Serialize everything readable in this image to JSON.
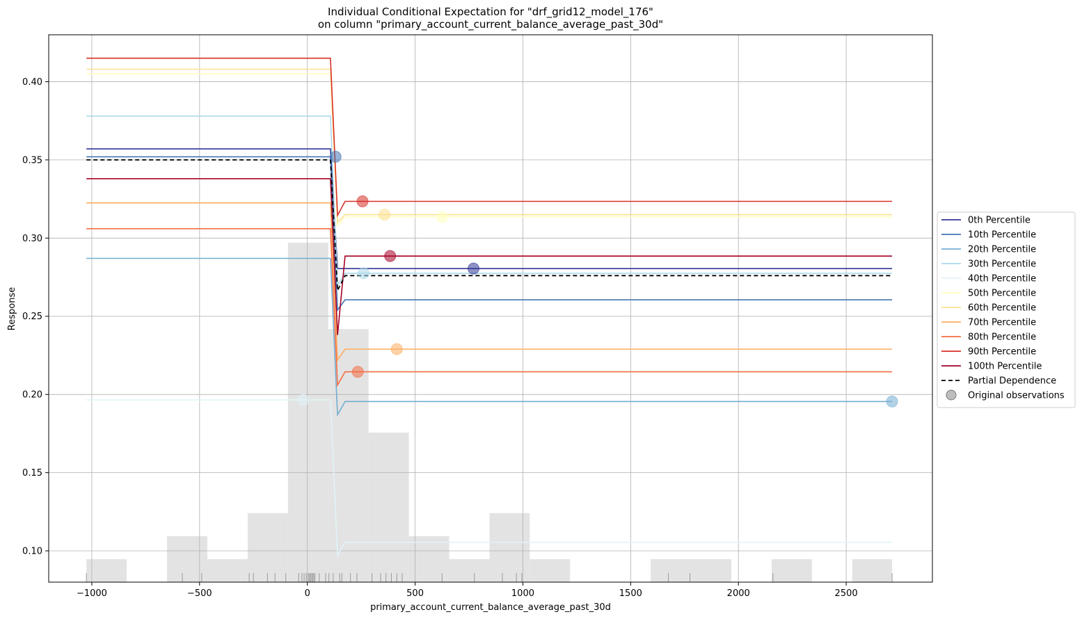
{
  "chart_data": {
    "type": "line",
    "title": "Individual Conditional Expectation for \"drf_grid12_model_176\"",
    "subtitle": "on column \"primary_account_current_balance_average_past_30d\"",
    "xlabel": "primary_account_current_balance_average_past_30d",
    "ylabel": "Response",
    "xlim": [
      -1200,
      2900
    ],
    "ylim": [
      0.08,
      0.43
    ],
    "xticks": [
      -1000,
      -500,
      0,
      500,
      1000,
      1500,
      2000,
      2500
    ],
    "xtick_labels": [
      "−1000",
      "−500",
      "0",
      "500",
      "1000",
      "1500",
      "2000",
      "2500"
    ],
    "yticks": [
      0.1,
      0.15,
      0.2,
      0.25,
      0.3,
      0.35,
      0.4
    ],
    "ytick_labels": [
      "0.10",
      "0.15",
      "0.20",
      "0.25",
      "0.30",
      "0.35",
      "0.40"
    ],
    "grid": true,
    "legend_position": "right",
    "x": [
      -1025,
      107,
      140,
      175,
      2713
    ],
    "series": [
      {
        "name": "0th Percentile",
        "color": "#313695",
        "values": [
          0.357,
          0.357,
          0.2805,
          0.2805,
          0.2805
        ],
        "observation": [
          771,
          0.2805
        ]
      },
      {
        "name": "10th Percentile",
        "color": "#4575b4",
        "values": [
          0.352,
          0.352,
          0.254,
          0.2605,
          0.2605
        ],
        "observation": [
          131,
          0.352
        ]
      },
      {
        "name": "20th Percentile",
        "color": "#74add1",
        "values": [
          0.287,
          0.287,
          0.187,
          0.1955,
          0.1955
        ],
        "observation": [
          2713,
          0.1955
        ]
      },
      {
        "name": "30th Percentile",
        "color": "#abd9e9",
        "values": [
          0.378,
          0.378,
          0.27,
          0.2775,
          0.2775
        ],
        "observation": [
          261,
          0.2775
        ]
      },
      {
        "name": "40th Percentile",
        "color": "#e0f3f8",
        "values": [
          0.1965,
          0.1965,
          0.097,
          0.1055,
          0.1055
        ],
        "observation": [
          -20,
          0.1965
        ]
      },
      {
        "name": "50th Percentile",
        "color": "#ffffbf",
        "values": [
          0.405,
          0.405,
          0.308,
          0.3135,
          0.3135
        ],
        "observation": [
          625,
          0.3135
        ]
      },
      {
        "name": "60th Percentile",
        "color": "#fee090",
        "values": [
          0.408,
          0.408,
          0.31,
          0.315,
          0.315
        ],
        "observation": [
          358,
          0.315
        ]
      },
      {
        "name": "70th Percentile",
        "color": "#fdae61",
        "values": [
          0.3225,
          0.3225,
          0.222,
          0.229,
          0.229
        ],
        "observation": [
          415,
          0.229
        ]
      },
      {
        "name": "80th Percentile",
        "color": "#f46d43",
        "values": [
          0.306,
          0.306,
          0.206,
          0.2145,
          0.2145
        ],
        "observation": [
          234,
          0.2145
        ]
      },
      {
        "name": "90th Percentile",
        "color": "#d73027",
        "values": [
          0.415,
          0.415,
          0.3145,
          0.3235,
          0.3235
        ],
        "observation": [
          256,
          0.3235
        ]
      },
      {
        "name": "100th Percentile",
        "color": "#a50026",
        "values": [
          0.338,
          0.338,
          0.238,
          0.2885,
          0.2885
        ],
        "observation": [
          384,
          0.2885
        ]
      },
      {
        "name": "Partial Dependence",
        "color": "#000000",
        "dashed": true,
        "values": [
          0.35,
          0.35,
          0.2665,
          0.276,
          0.276
        ]
      }
    ],
    "observations_legend": "Original observations",
    "histogram": {
      "color": "#e3e3e3",
      "bins": [
        {
          "x0": -1025,
          "x1": -838,
          "relative_height": 0.0678
        },
        {
          "x0": -838,
          "x1": -651,
          "relative_height": 0
        },
        {
          "x0": -651,
          "x1": -464,
          "relative_height": 0.1356
        },
        {
          "x0": -464,
          "x1": -277,
          "relative_height": 0.0678
        },
        {
          "x0": -277,
          "x1": -90,
          "relative_height": 0.2034
        },
        {
          "x0": -90,
          "x1": 97,
          "relative_height": 1.0
        },
        {
          "x0": 97,
          "x1": 284,
          "relative_height": 0.7458
        },
        {
          "x0": 284,
          "x1": 471,
          "relative_height": 0.4407
        },
        {
          "x0": 471,
          "x1": 658,
          "relative_height": 0.1356
        },
        {
          "x0": 658,
          "x1": 845,
          "relative_height": 0.0678
        },
        {
          "x0": 845,
          "x1": 1032,
          "relative_height": 0.2034
        },
        {
          "x0": 1032,
          "x1": 1219,
          "relative_height": 0.0678
        },
        {
          "x0": 1219,
          "x1": 1593,
          "relative_height": 0
        },
        {
          "x0": 1593,
          "x1": 1967,
          "relative_height": 0.0678
        },
        {
          "x0": 1967,
          "x1": 2154,
          "relative_height": 0
        },
        {
          "x0": 2154,
          "x1": 2341,
          "relative_height": 0.0678
        },
        {
          "x0": 2341,
          "x1": 2528,
          "relative_height": 0
        },
        {
          "x0": 2528,
          "x1": 2713,
          "relative_height": 0.0678
        }
      ]
    },
    "rug": [
      -1025,
      -580,
      -490,
      -270,
      -250,
      -185,
      -150,
      -100,
      -40,
      -25,
      -15,
      -5,
      5,
      10,
      15,
      20,
      25,
      30,
      35,
      55,
      85,
      100,
      120,
      150,
      160,
      200,
      230,
      300,
      340,
      365,
      390,
      415,
      440,
      625,
      775,
      905,
      970,
      995,
      1675,
      1775,
      2160,
      2713
    ]
  }
}
